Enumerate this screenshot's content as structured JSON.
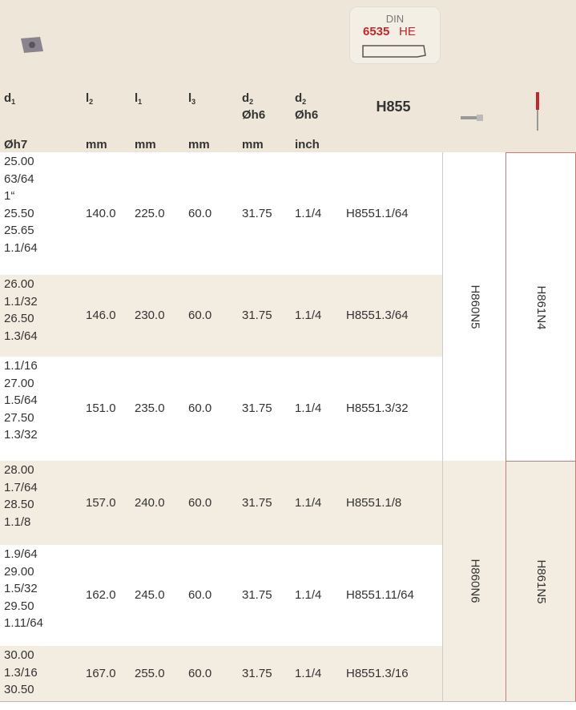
{
  "header": {
    "columns": [
      {
        "symbol": "d",
        "sub": "1",
        "unit": "Øh7"
      },
      {
        "symbol": "l",
        "sub": "2",
        "unit": "mm"
      },
      {
        "symbol": "l",
        "sub": "1",
        "unit": "mm"
      },
      {
        "symbol": "l",
        "sub": "3",
        "unit": "mm"
      },
      {
        "symbol": "d",
        "sub": "2",
        "tolerance": "Øh6",
        "unit": "mm"
      },
      {
        "symbol": "d",
        "sub": "2",
        "tolerance": "Øh6",
        "unit": "inch"
      }
    ],
    "logo": {
      "line1": "DIN",
      "number": "6535",
      "suffix": "HE"
    },
    "code_header": "H855"
  },
  "table": {
    "rows": [
      {
        "diameters": [
          "25.00",
          "63/64",
          "1“",
          "25.50",
          "25.65",
          "1.1/64"
        ],
        "l2": "140.0",
        "l1": "225.0",
        "l3": "60.0",
        "d2_mm": "31.75",
        "d2_inch": "1.1/4",
        "code": "H8551.1/64"
      },
      {
        "diameters": [
          "26.00",
          "1.1/32",
          "26.50",
          "1.3/64"
        ],
        "l2": "146.0",
        "l1": "230.0",
        "l3": "60.0",
        "d2_mm": "31.75",
        "d2_inch": "1.1/4",
        "code": "H8551.3/64"
      },
      {
        "diameters": [
          "1.1/16",
          "27.00",
          "1.5/64",
          "27.50",
          "1.3/32"
        ],
        "l2": "151.0",
        "l1": "235.0",
        "l3": "60.0",
        "d2_mm": "31.75",
        "d2_inch": "1.1/4",
        "code": "H8551.3/32"
      },
      {
        "diameters": [
          "28.00",
          "1.7/64",
          "28.50",
          "1.1/8"
        ],
        "l2": "157.0",
        "l1": "240.0",
        "l3": "60.0",
        "d2_mm": "31.75",
        "d2_inch": "1.1/4",
        "code": "H8551.1/8"
      },
      {
        "diameters": [
          "1.9/64",
          "29.00",
          "1.5/32",
          "29.50",
          "1.11/64"
        ],
        "l2": "162.0",
        "l1": "245.0",
        "l3": "60.0",
        "d2_mm": "31.75",
        "d2_inch": "1.1/4",
        "code": "H8551.11/64"
      },
      {
        "diameters": [
          "30.00",
          "1.3/16",
          "30.50"
        ],
        "l2": "167.0",
        "l1": "255.0",
        "l3": "60.0",
        "d2_mm": "31.75",
        "d2_inch": "1.1/4",
        "code": "H8551.3/16"
      }
    ],
    "groups": [
      {
        "holder": "H860N5",
        "driver": "H861N4"
      },
      {
        "holder": "H860N6",
        "driver": "H861N5"
      }
    ]
  }
}
